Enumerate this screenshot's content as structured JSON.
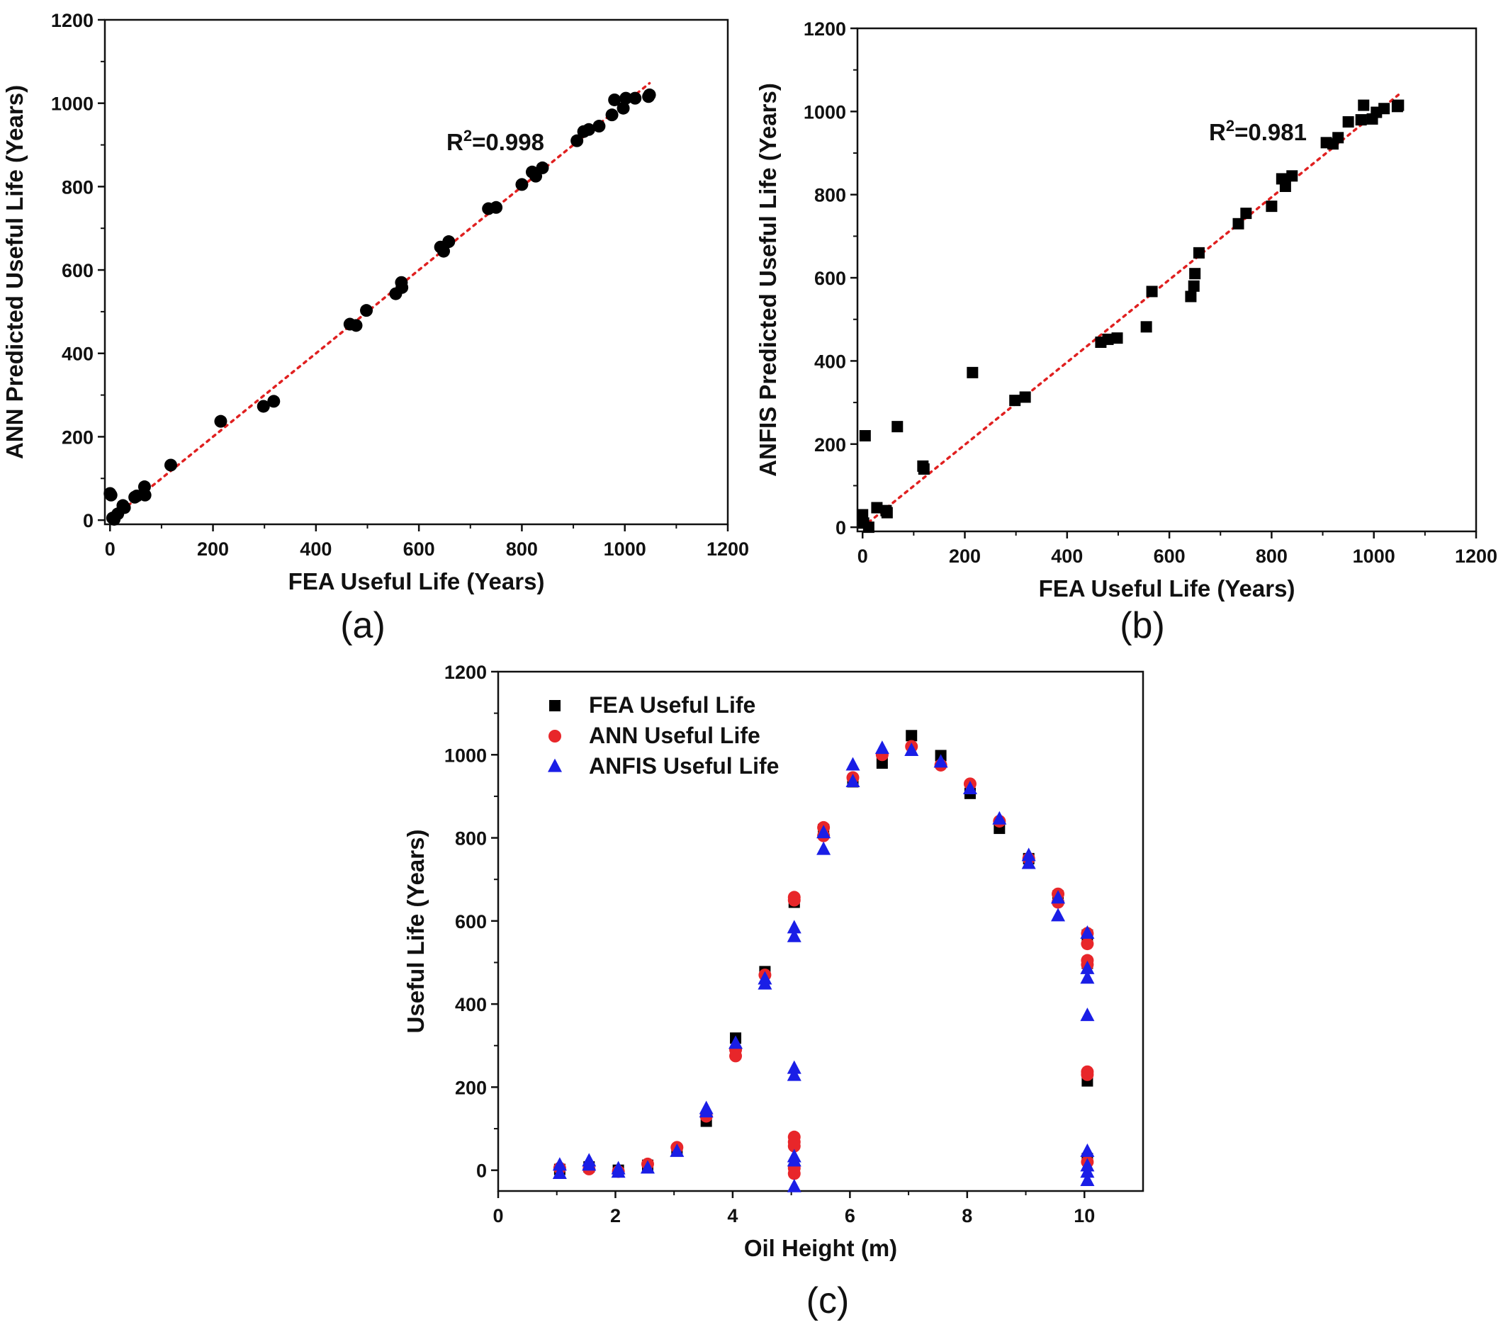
{
  "chart_data": [
    {
      "type": "scatter",
      "panel_label": "(a)",
      "xlabel": "FEA Useful Life (Years)",
      "ylabel": "ANN Predicted Useful Life (Years)",
      "xlim": [
        -10,
        1200
      ],
      "ylim": [
        -10,
        1200
      ],
      "xticks": [
        0,
        200,
        400,
        600,
        800,
        1000,
        1200
      ],
      "yticks": [
        0,
        200,
        400,
        600,
        800,
        1000,
        1200
      ],
      "annotation": {
        "prefix": "R",
        "sup": "2",
        "value": "=0.998"
      },
      "fit_line": {
        "style": "dotted",
        "color": "#e02020",
        "x": [
          0,
          1048
        ],
        "y": [
          0,
          1048
        ]
      },
      "marker": "circle",
      "marker_color": "#000000",
      "points": [
        [
          0,
          64
        ],
        [
          2,
          60
        ],
        [
          5,
          5
        ],
        [
          8,
          2
        ],
        [
          15,
          15
        ],
        [
          25,
          35
        ],
        [
          28,
          30
        ],
        [
          48,
          55
        ],
        [
          52,
          58
        ],
        [
          67,
          80
        ],
        [
          68,
          60
        ],
        [
          118,
          132
        ],
        [
          215,
          237
        ],
        [
          298,
          273
        ],
        [
          318,
          285
        ],
        [
          466,
          470
        ],
        [
          478,
          467
        ],
        [
          498,
          503
        ],
        [
          555,
          543
        ],
        [
          566,
          570
        ],
        [
          567,
          558
        ],
        [
          642,
          655
        ],
        [
          648,
          645
        ],
        [
          658,
          668
        ],
        [
          735,
          747
        ],
        [
          750,
          750
        ],
        [
          800,
          805
        ],
        [
          820,
          835
        ],
        [
          827,
          825
        ],
        [
          840,
          845
        ],
        [
          907,
          910
        ],
        [
          920,
          932
        ],
        [
          930,
          937
        ],
        [
          950,
          945
        ],
        [
          975,
          972
        ],
        [
          980,
          1008
        ],
        [
          997,
          988
        ],
        [
          1002,
          1012
        ],
        [
          1020,
          1012
        ],
        [
          1046,
          1016
        ],
        [
          1048,
          1020
        ]
      ]
    },
    {
      "type": "scatter",
      "panel_label": "(b)",
      "xlabel": "FEA Useful Life (Years)",
      "ylabel": "ANFIS Predicted Useful Life (Years)",
      "xlim": [
        -10,
        1200
      ],
      "ylim": [
        -10,
        1200
      ],
      "xticks": [
        0,
        200,
        400,
        600,
        800,
        1000,
        1200
      ],
      "yticks": [
        0,
        200,
        400,
        600,
        800,
        1000,
        1200
      ],
      "annotation": {
        "prefix": "R",
        "sup": "2",
        "value": "=0.981"
      },
      "fit_line": {
        "style": "dotted",
        "color": "#e02020",
        "x": [
          0,
          1048
        ],
        "y": [
          0,
          1040
        ]
      },
      "marker": "square",
      "marker_color": "#000000",
      "points": [
        [
          0,
          30
        ],
        [
          2,
          10
        ],
        [
          5,
          220
        ],
        [
          12,
          0
        ],
        [
          28,
          47
        ],
        [
          46,
          40
        ],
        [
          48,
          35
        ],
        [
          68,
          242
        ],
        [
          118,
          147
        ],
        [
          120,
          140
        ],
        [
          215,
          372
        ],
        [
          298,
          305
        ],
        [
          318,
          313
        ],
        [
          466,
          445
        ],
        [
          480,
          452
        ],
        [
          498,
          455
        ],
        [
          555,
          482
        ],
        [
          566,
          567
        ],
        [
          642,
          555
        ],
        [
          648,
          580
        ],
        [
          650,
          610
        ],
        [
          658,
          660
        ],
        [
          735,
          730
        ],
        [
          750,
          755
        ],
        [
          800,
          772
        ],
        [
          820,
          838
        ],
        [
          827,
          820
        ],
        [
          840,
          845
        ],
        [
          907,
          925
        ],
        [
          920,
          922
        ],
        [
          930,
          937
        ],
        [
          950,
          975
        ],
        [
          975,
          980
        ],
        [
          980,
          1015
        ],
        [
          997,
          982
        ],
        [
          1005,
          998
        ],
        [
          1020,
          1007
        ],
        [
          1046,
          1012
        ],
        [
          1048,
          1015
        ]
      ]
    },
    {
      "type": "scatter",
      "panel_label": "(c)",
      "xlabel": "Oil Height (m)",
      "ylabel": "Useful Life (Years)",
      "xlim": [
        0,
        11
      ],
      "ylim": [
        -50,
        1200
      ],
      "xticks": [
        0,
        2,
        4,
        6,
        8,
        10
      ],
      "yticks": [
        0,
        200,
        400,
        600,
        800,
        1000,
        1200
      ],
      "legend_position": "top-left",
      "series": [
        {
          "name": "FEA Useful Life",
          "marker": "square",
          "color": "#000000",
          "points": [
            [
              1.05,
              2
            ],
            [
              1.55,
              8
            ],
            [
              2.05,
              0
            ],
            [
              2.55,
              12
            ],
            [
              3.05,
              48
            ],
            [
              3.55,
              118
            ],
            [
              4.05,
              318
            ],
            [
              4.55,
              478
            ],
            [
              5.05,
              645
            ],
            [
              5.05,
              68
            ],
            [
              5.05,
              3
            ],
            [
              5.55,
              820
            ],
            [
              6.05,
              935
            ],
            [
              6.55,
              980
            ],
            [
              7.05,
              1046
            ],
            [
              7.55,
              998
            ],
            [
              8.05,
              907
            ],
            [
              8.55,
              823
            ],
            [
              9.05,
              750
            ],
            [
              9.55,
              660
            ],
            [
              10.05,
              566
            ],
            [
              10.05,
              498
            ],
            [
              10.05,
              215
            ],
            [
              10.05,
              28
            ]
          ]
        },
        {
          "name": "ANN Useful Life",
          "marker": "circle",
          "color": "#e8262a",
          "points": [
            [
              1.05,
              5
            ],
            [
              1.55,
              3
            ],
            [
              2.05,
              -3
            ],
            [
              2.55,
              15
            ],
            [
              3.05,
              55
            ],
            [
              3.55,
              130
            ],
            [
              4.05,
              290
            ],
            [
              4.05,
              275
            ],
            [
              4.55,
              470
            ],
            [
              5.05,
              657
            ],
            [
              5.05,
              650
            ],
            [
              5.05,
              80
            ],
            [
              5.05,
              68
            ],
            [
              5.05,
              58
            ],
            [
              5.05,
              5
            ],
            [
              5.05,
              -8
            ],
            [
              5.55,
              825
            ],
            [
              5.55,
              805
            ],
            [
              6.05,
              945
            ],
            [
              6.55,
              1000
            ],
            [
              7.05,
              1020
            ],
            [
              7.55,
              975
            ],
            [
              8.05,
              930
            ],
            [
              8.55,
              840
            ],
            [
              9.05,
              750
            ],
            [
              9.55,
              665
            ],
            [
              9.55,
              645
            ],
            [
              10.05,
              570
            ],
            [
              10.05,
              545
            ],
            [
              10.05,
              505
            ],
            [
              10.05,
              495
            ],
            [
              10.05,
              237
            ],
            [
              10.05,
              230
            ],
            [
              10.05,
              20
            ]
          ]
        },
        {
          "name": "ANFIS Useful Life",
          "marker": "triangle",
          "color": "#1a1ee6",
          "points": [
            [
              1.05,
              12
            ],
            [
              1.05,
              -8
            ],
            [
              1.55,
              22
            ],
            [
              1.55,
              12
            ],
            [
              2.05,
              3
            ],
            [
              2.05,
              -5
            ],
            [
              2.55,
              5
            ],
            [
              3.05,
              45
            ],
            [
              3.55,
              148
            ],
            [
              3.55,
              140
            ],
            [
              4.05,
              305
            ],
            [
              4.55,
              460
            ],
            [
              4.55,
              448
            ],
            [
              5.05,
              583
            ],
            [
              5.05,
              562
            ],
            [
              5.05,
              245
            ],
            [
              5.05,
              228
            ],
            [
              5.05,
              32
            ],
            [
              5.05,
              22
            ],
            [
              5.05,
              -40
            ],
            [
              5.55,
              812
            ],
            [
              5.55,
              772
            ],
            [
              6.05,
              975
            ],
            [
              6.05,
              935
            ],
            [
              6.55,
              1015
            ],
            [
              7.05,
              1010
            ],
            [
              7.55,
              982
            ],
            [
              8.05,
              918
            ],
            [
              8.55,
              845
            ],
            [
              9.05,
              757
            ],
            [
              9.05,
              738
            ],
            [
              9.55,
              655
            ],
            [
              9.55,
              612
            ],
            [
              10.05,
              570
            ],
            [
              10.05,
              485
            ],
            [
              10.05,
              462
            ],
            [
              10.05,
              372
            ],
            [
              10.05,
              45
            ],
            [
              10.05,
              10
            ],
            [
              10.05,
              -5
            ],
            [
              10.05,
              -25
            ]
          ]
        }
      ]
    }
  ]
}
